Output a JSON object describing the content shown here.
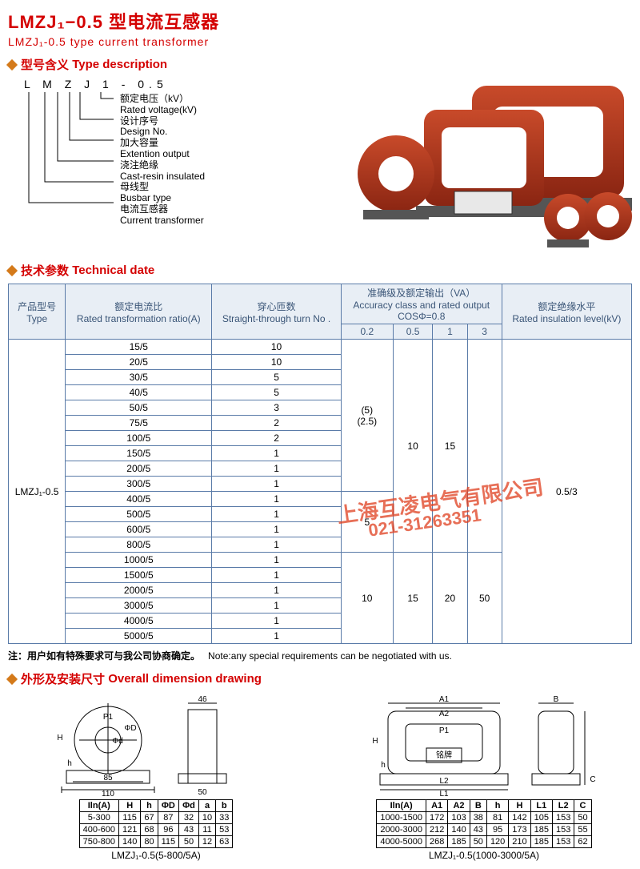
{
  "title": {
    "zh": "LMZJ₁−0.5 型电流互感器",
    "en": "LMZJ₁-0.5 type current transformer"
  },
  "sections": {
    "typeDesc": {
      "zh": "型号含义",
      "en": "Type description"
    },
    "tech": {
      "zh": "技术参数",
      "en": "Technical date"
    },
    "dims": {
      "zh": "外形及安装尺寸",
      "en": "Overall dimension drawing"
    }
  },
  "typeCode": "L M Z J 1 - 0.5",
  "typeLines": [
    {
      "zh": "额定电压（kV）",
      "en": "Rated voltage(kV)"
    },
    {
      "zh": "设计序号",
      "en": "Design No."
    },
    {
      "zh": "加大容量",
      "en": "Extention output"
    },
    {
      "zh": "浇注绝缘",
      "en": "Cast-resin insulated"
    },
    {
      "zh": "母线型",
      "en": "Busbar type"
    },
    {
      "zh": "电流互感器",
      "en": "Current transformer"
    }
  ],
  "techTable": {
    "headers": {
      "type": {
        "zh": "产品型号",
        "en": "Type"
      },
      "ratio": {
        "zh": "额定电流比",
        "en": "Rated transformation ratio(A)"
      },
      "turn": {
        "zh": "穿心匝数",
        "en": "Straight-through turn No ."
      },
      "acc": {
        "zh": "准确级及额定输出（VA）",
        "en": "Accuracy class and rated output",
        "formula": "COSΦ=0.8"
      },
      "accCols": [
        "0.2",
        "0.5",
        "1",
        "3"
      ],
      "ins": {
        "zh": "额定绝缘水平",
        "en": "Rated insulation level(kV)"
      }
    },
    "typeLabel": "LMZJ₁-0.5",
    "insulation": "0.5/3",
    "rows1": [
      {
        "ratio": "15/5",
        "turn": "10"
      },
      {
        "ratio": "20/5",
        "turn": "10"
      },
      {
        "ratio": "30/5",
        "turn": "5"
      },
      {
        "ratio": "40/5",
        "turn": "5"
      },
      {
        "ratio": "50/5",
        "turn": "3"
      },
      {
        "ratio": "75/5",
        "turn": "2"
      },
      {
        "ratio": "100/5",
        "turn": "2"
      },
      {
        "ratio": "150/5",
        "turn": "1"
      },
      {
        "ratio": "200/5",
        "turn": "1"
      },
      {
        "ratio": "300/5",
        "turn": "1"
      }
    ],
    "acc1": {
      "c02": "(5)\n(2.5)",
      "c05": "10",
      "c1": "15",
      "c3": ""
    },
    "rows2": [
      {
        "ratio": "400/5",
        "turn": "1"
      },
      {
        "ratio": "500/5",
        "turn": "1"
      },
      {
        "ratio": "600/5",
        "turn": "1"
      },
      {
        "ratio": "800/5",
        "turn": "1"
      }
    ],
    "acc2": {
      "c02": "5",
      "c05": "",
      "c1": "",
      "c3": ""
    },
    "rows3": [
      {
        "ratio": "1000/5",
        "turn": "1"
      },
      {
        "ratio": "1500/5",
        "turn": "1"
      },
      {
        "ratio": "2000/5",
        "turn": "1"
      },
      {
        "ratio": "3000/5",
        "turn": "1"
      },
      {
        "ratio": "4000/5",
        "turn": "1"
      },
      {
        "ratio": "5000/5",
        "turn": "1"
      }
    ],
    "acc3": {
      "c02": "10",
      "c05": "15",
      "c1": "20",
      "c3": "50"
    }
  },
  "note": {
    "zh": "注：用户如有特殊要求可与我公司协商确定。",
    "en": "Note:any special requirements can be negotiated with us."
  },
  "watermark": {
    "company": "上海互凌电气有限公司",
    "phone": "021-31263351"
  },
  "dim1": {
    "caption": "LMZJ₁-0.5(5-800/5A)",
    "labels": {
      "topDim": "46",
      "w1": "85",
      "w2": "110",
      "side": "50",
      "H": "H",
      "h": "h",
      "P1": "P1",
      "phiD": "ΦD",
      "phid": "Φd",
      "a": "a",
      "b": "b"
    },
    "headers": [
      "Iln(A)",
      "H",
      "h",
      "ΦD",
      "Φd",
      "a",
      "b"
    ],
    "rows": [
      [
        "5-300",
        "115",
        "67",
        "87",
        "32",
        "10",
        "33"
      ],
      [
        "400-600",
        "121",
        "68",
        "96",
        "43",
        "11",
        "53"
      ],
      [
        "750-800",
        "140",
        "80",
        "115",
        "50",
        "12",
        "63"
      ]
    ]
  },
  "dim2": {
    "caption": "LMZJ₁-0.5(1000-3000/5A)",
    "labels": {
      "A1": "A1",
      "A2": "A2",
      "B": "B",
      "C": "C",
      "P1": "P1",
      "h": "h",
      "H": "H",
      "L1": "L1",
      "L2": "L2",
      "plate": "铭牌"
    },
    "headers": [
      "Iln(A)",
      "A1",
      "A2",
      "B",
      "h",
      "H",
      "L1",
      "L2",
      "C"
    ],
    "rows": [
      [
        "1000-1500",
        "172",
        "103",
        "38",
        "81",
        "142",
        "105",
        "153",
        "50"
      ],
      [
        "2000-3000",
        "212",
        "140",
        "43",
        "95",
        "173",
        "185",
        "153",
        "55"
      ],
      [
        "4000-5000",
        "268",
        "185",
        "50",
        "120",
        "210",
        "185",
        "153",
        "62"
      ]
    ]
  },
  "colors": {
    "brand": "#d40000",
    "accent": "#d47a1a",
    "tableBorder": "#5a7ba8",
    "tableHeaderBg": "#e8eef5",
    "ctRed": "#a82e1a",
    "watermark": "#e04020"
  }
}
